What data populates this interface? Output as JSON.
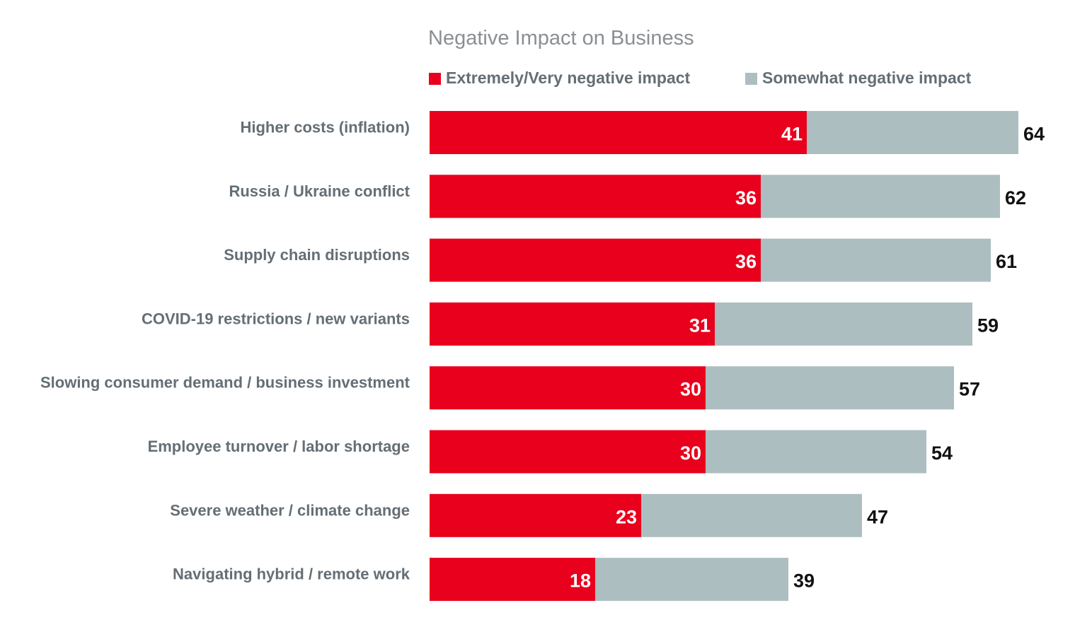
{
  "chart_data": {
    "type": "bar",
    "orientation": "horizontal",
    "stacked": true,
    "title": "Negative Impact on Business",
    "categories": [
      "Higher costs (inflation)",
      "Russia / Ukraine conflict",
      "Supply chain disruptions",
      "COVID-19 restrictions / new variants",
      "Slowing consumer demand / business investment",
      "Employee turnover / labor shortage",
      "Severe weather / climate change",
      "Navigating hybrid / remote work"
    ],
    "series": [
      {
        "name": "Extremely/Very negative impact",
        "color": "#e8001c",
        "values": [
          41,
          36,
          36,
          31,
          30,
          30,
          23,
          18
        ]
      },
      {
        "name": "Somewhat negative impact",
        "color": "#adbec1",
        "values": [
          23,
          26,
          25,
          28,
          27,
          24,
          24,
          21
        ]
      }
    ],
    "totals": [
      64,
      62,
      61,
      59,
      57,
      54,
      47,
      39
    ],
    "legend_position": "top",
    "grid": false
  }
}
